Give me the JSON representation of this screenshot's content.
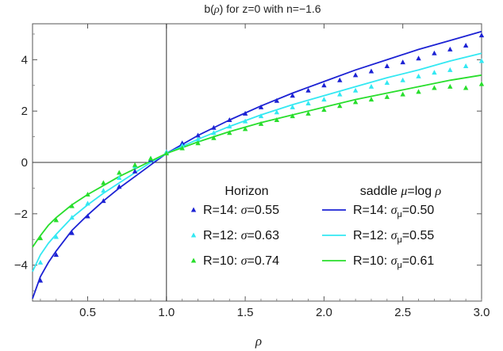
{
  "chart_data": {
    "type": "scatter",
    "title": "b(ρ) for z=0 with n=−1.6",
    "title_parts": [
      "b(",
      "ρ",
      ") for z=0 with n=−1.6"
    ],
    "xlabel": "ρ",
    "ylabel": "",
    "xlim": [
      0.15,
      3.0
    ],
    "ylim": [
      -5.4,
      5.4
    ],
    "x_ticks": [
      0.5,
      1.0,
      1.5,
      2.0,
      2.5,
      3.0
    ],
    "x_tick_labels": [
      "0.5",
      "1.0",
      "1.5",
      "2.0",
      "2.5",
      "3.0"
    ],
    "y_ticks": [
      -4,
      -2,
      0,
      2,
      4
    ],
    "y_tick_labels": [
      "−4",
      "−2",
      "0",
      "2",
      "4"
    ],
    "grid": false,
    "reference_lines": {
      "x": 1.0,
      "y": 0
    },
    "legend_placement": "bottom-right",
    "legend": {
      "left_title": "Horizon",
      "right_title_parts": [
        "saddle ",
        "μ",
        "=log ",
        "ρ"
      ],
      "marker_entries": [
        {
          "parts": [
            "R=14: ",
            "σ",
            "=0.55"
          ],
          "color": "#1c22d4"
        },
        {
          "parts": [
            "R=12: ",
            "σ",
            "=0.63"
          ],
          "color": "#33e8f2"
        },
        {
          "parts": [
            "R=10: ",
            "σ",
            "=0.74"
          ],
          "color": "#28de2c"
        }
      ],
      "line_entries": [
        {
          "parts": [
            "R=14: ",
            "σ",
            "μ",
            "=0.50"
          ],
          "color": "#1c22d4"
        },
        {
          "parts": [
            "R=12: ",
            "σ",
            "μ",
            "=0.55"
          ],
          "color": "#33e8f2"
        },
        {
          "parts": [
            "R=10: ",
            "σ",
            "μ",
            "=0.61"
          ],
          "color": "#28de2c"
        }
      ]
    },
    "series": [
      {
        "kind": "points",
        "color": "#1c22d4",
        "x": [
          0.2,
          0.3,
          0.4,
          0.5,
          0.6,
          0.7,
          0.8,
          0.9,
          1.0,
          1.1,
          1.2,
          1.3,
          1.4,
          1.5,
          1.6,
          1.7,
          1.8,
          1.9,
          2.0,
          2.1,
          2.2,
          2.3,
          2.4,
          2.5,
          2.6,
          2.7,
          2.8,
          2.9,
          3.0
        ],
        "y": [
          -4.6,
          -3.6,
          -2.75,
          -2.1,
          -1.5,
          -0.95,
          -0.35,
          0.1,
          0.4,
          0.75,
          1.05,
          1.35,
          1.65,
          1.9,
          2.15,
          2.4,
          2.6,
          2.8,
          3.0,
          3.2,
          3.4,
          3.55,
          3.75,
          3.9,
          4.05,
          4.25,
          4.4,
          4.55,
          4.95
        ]
      },
      {
        "kind": "points",
        "color": "#33e8f2",
        "x": [
          0.2,
          0.3,
          0.4,
          0.5,
          0.6,
          0.7,
          0.8,
          0.9,
          1.0,
          1.1,
          1.2,
          1.3,
          1.4,
          1.5,
          1.6,
          1.7,
          1.8,
          1.9,
          2.0,
          2.1,
          2.2,
          2.3,
          2.4,
          2.5,
          2.6,
          2.7,
          2.8,
          2.9,
          3.0
        ],
        "y": [
          -3.9,
          -2.9,
          -2.15,
          -1.6,
          -1.1,
          -0.6,
          -0.15,
          0.15,
          0.4,
          0.65,
          0.9,
          1.15,
          1.4,
          1.6,
          1.8,
          1.95,
          2.15,
          2.3,
          2.45,
          2.65,
          2.8,
          2.95,
          3.1,
          3.2,
          3.35,
          3.5,
          3.6,
          3.75,
          3.95
        ]
      },
      {
        "kind": "points",
        "color": "#28de2c",
        "x": [
          0.2,
          0.3,
          0.4,
          0.5,
          0.6,
          0.7,
          0.8,
          0.9,
          1.0,
          1.1,
          1.2,
          1.3,
          1.4,
          1.5,
          1.6,
          1.7,
          1.8,
          1.9,
          2.0,
          2.1,
          2.2,
          2.3,
          2.4,
          2.5,
          2.6,
          2.7,
          2.8,
          2.9,
          3.0
        ],
        "y": [
          -2.95,
          -2.25,
          -1.7,
          -1.25,
          -0.8,
          -0.4,
          -0.1,
          0.15,
          0.35,
          0.55,
          0.75,
          0.95,
          1.15,
          1.3,
          1.5,
          1.65,
          1.8,
          1.9,
          2.05,
          2.2,
          2.35,
          2.45,
          2.55,
          2.65,
          2.75,
          2.9,
          2.95,
          2.9,
          3.05
        ]
      },
      {
        "kind": "line",
        "color": "#1c22d4",
        "x": [
          0.15,
          0.2,
          0.25,
          0.3,
          0.4,
          0.5,
          0.6,
          0.7,
          0.8,
          0.9,
          1.0,
          1.2,
          1.4,
          1.6,
          1.8,
          2.0,
          2.2,
          2.4,
          2.6,
          2.8,
          3.0
        ],
        "y": [
          -5.3,
          -4.45,
          -3.9,
          -3.45,
          -2.65,
          -2.05,
          -1.5,
          -1.0,
          -0.55,
          -0.1,
          0.35,
          1.05,
          1.65,
          2.2,
          2.7,
          3.15,
          3.6,
          4.0,
          4.4,
          4.75,
          5.1
        ]
      },
      {
        "kind": "line",
        "color": "#33e8f2",
        "x": [
          0.15,
          0.2,
          0.25,
          0.3,
          0.4,
          0.5,
          0.6,
          0.7,
          0.8,
          0.9,
          1.0,
          1.2,
          1.4,
          1.6,
          1.8,
          2.0,
          2.2,
          2.4,
          2.6,
          2.8,
          3.0
        ],
        "y": [
          -4.25,
          -3.6,
          -3.15,
          -2.8,
          -2.15,
          -1.65,
          -1.2,
          -0.8,
          -0.4,
          0.0,
          0.35,
          0.9,
          1.4,
          1.85,
          2.25,
          2.6,
          2.95,
          3.3,
          3.6,
          3.95,
          4.25
        ]
      },
      {
        "kind": "line",
        "color": "#28de2c",
        "x": [
          0.15,
          0.2,
          0.25,
          0.3,
          0.4,
          0.5,
          0.6,
          0.7,
          0.8,
          0.9,
          1.0,
          1.2,
          1.4,
          1.6,
          1.8,
          2.0,
          2.2,
          2.4,
          2.6,
          2.8,
          3.0
        ],
        "y": [
          -3.3,
          -2.85,
          -2.45,
          -2.15,
          -1.65,
          -1.25,
          -0.9,
          -0.55,
          -0.25,
          0.05,
          0.35,
          0.8,
          1.2,
          1.55,
          1.85,
          2.15,
          2.45,
          2.7,
          2.95,
          3.2,
          3.4
        ]
      }
    ]
  }
}
